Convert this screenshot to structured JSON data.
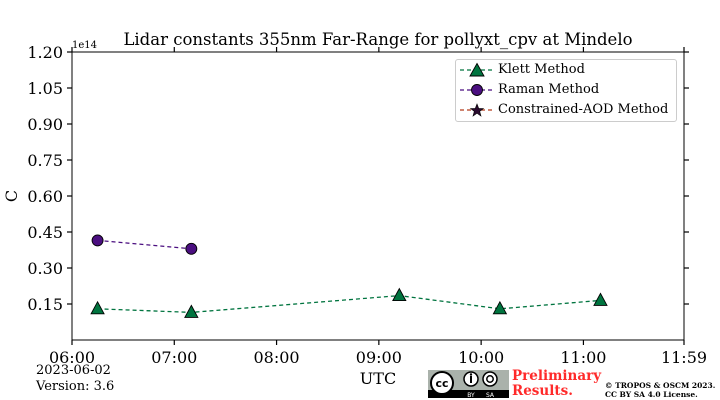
{
  "chart_data": {
    "type": "line",
    "title": "Lidar constants 355nm Far-Range for pollyxt_cpv at Mindelo",
    "xlabel": "UTC",
    "ylabel": "C",
    "y_offset_label": "1e14",
    "x_ticks": [
      "06:00",
      "07:00",
      "08:00",
      "09:00",
      "10:00",
      "11:00",
      "11:59"
    ],
    "y_ticks": [
      "0.15",
      "0.30",
      "0.45",
      "0.60",
      "0.75",
      "0.90",
      "1.05",
      "1.20"
    ],
    "xlim": [
      "06:00",
      "11:59"
    ],
    "ylim": [
      0.0,
      1.2
    ],
    "grid": false,
    "legend_position": "upper-right",
    "series": [
      {
        "name": "Klett Method",
        "marker": "triangle",
        "color": "#00743f",
        "line_style": "dashed",
        "x": [
          "06:15",
          "07:10",
          "09:12",
          "10:11",
          "11:10"
        ],
        "y": [
          0.13,
          0.115,
          0.185,
          0.13,
          0.165
        ]
      },
      {
        "name": "Raman Method",
        "marker": "circle",
        "color": "#4b0f80",
        "line_style": "dashed",
        "x": [
          "06:15",
          "07:10"
        ],
        "y": [
          0.415,
          0.38
        ]
      },
      {
        "name": "Constrained-AOD Method",
        "marker": "star",
        "color": "#b23a1a",
        "line_style": "dashed",
        "x": [],
        "y": []
      }
    ]
  },
  "footer": {
    "date": "2023-06-02",
    "version": "Version: 3.6",
    "preliminary_line1": "Preliminary",
    "preliminary_line2": "Results.",
    "copyright_line1": "© TROPOS & OSCM 2023.",
    "copyright_line2": "CC BY SA 4.0 License.",
    "cc_text": "cc",
    "by_text": "BY",
    "sa_text": "SA"
  }
}
